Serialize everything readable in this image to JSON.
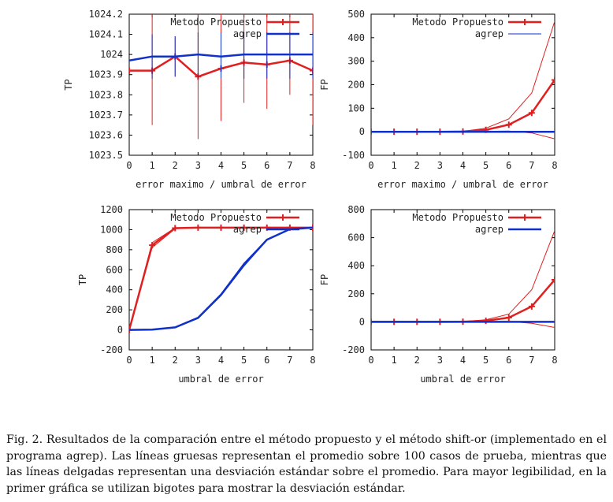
{
  "colors": {
    "propuesto": "#e02020",
    "agrep": "#1030c8",
    "axis": "#000000"
  },
  "chart_data": [
    {
      "id": "tl",
      "type": "line",
      "ylabel": "TP",
      "xlabel": "error maximo / umbral de error",
      "xlim": [
        0,
        8
      ],
      "ylim": [
        1023.5,
        1024.2
      ],
      "xticks": [
        "0",
        "1",
        "2",
        "3",
        "4",
        "5",
        "6",
        "7",
        "8"
      ],
      "yticks": [
        "1023.5",
        "1023.6",
        "1023.7",
        "1023.8",
        "1023.9",
        "1024",
        "1024.1",
        "1024.2"
      ],
      "legend": [
        "Metodo Propuesto",
        "agrep"
      ],
      "series": [
        {
          "name": "Metodo Propuesto",
          "x": [
            0,
            1,
            2,
            3,
            4,
            5,
            6,
            7,
            8
          ],
          "y": [
            1023.92,
            1023.92,
            1023.99,
            1023.89,
            1023.93,
            1023.96,
            1023.95,
            1023.97,
            1023.92
          ],
          "err_lo": [
            null,
            1023.65,
            1023.89,
            1023.58,
            1023.67,
            1023.76,
            1023.73,
            1023.8,
            1023.65
          ],
          "err_hi": [
            null,
            1024.2,
            1024.09,
            1024.2,
            1024.2,
            1024.2,
            1024.2,
            1024.2,
            1024.2
          ]
        },
        {
          "name": "agrep",
          "x": [
            0,
            1,
            2,
            3,
            4,
            5,
            6,
            7,
            8
          ],
          "y": [
            1023.97,
            1023.99,
            1023.99,
            1024.0,
            1023.99,
            1024.0,
            1024.0,
            1024.0,
            1024.0
          ],
          "err_lo": [
            null,
            1023.88,
            1023.89,
            1023.88,
            1023.88,
            1023.88,
            1023.88,
            1023.88,
            1023.88
          ],
          "err_hi": [
            null,
            1024.1,
            1024.09,
            1024.11,
            1024.11,
            1024.11,
            1024.11,
            1024.11,
            1024.11
          ]
        }
      ]
    },
    {
      "id": "tr",
      "type": "line",
      "ylabel": "FP",
      "xlabel": "error maximo / umbral de error",
      "xlim": [
        0,
        8
      ],
      "ylim": [
        -100,
        500
      ],
      "xticks": [
        "0",
        "1",
        "2",
        "3",
        "4",
        "5",
        "6",
        "7",
        "8"
      ],
      "yticks": [
        "-100",
        "0",
        "100",
        "200",
        "300",
        "400",
        "500"
      ],
      "legend": [
        "Metodo Propuesto",
        "agrep"
      ],
      "series": [
        {
          "name": "Metodo Propuesto",
          "x": [
            0,
            1,
            2,
            3,
            4,
            5,
            6,
            7,
            8
          ],
          "y": [
            0,
            0,
            0,
            0,
            1,
            8,
            30,
            80,
            220
          ],
          "upper": [
            0,
            0,
            0,
            0,
            2,
            15,
            55,
            165,
            470
          ],
          "lower": [
            0,
            0,
            0,
            0,
            0,
            2,
            3,
            -5,
            -30
          ]
        },
        {
          "name": "agrep",
          "x": [
            0,
            1,
            2,
            3,
            4,
            5,
            6,
            7,
            8
          ],
          "y": [
            0,
            0,
            0,
            0,
            0,
            0,
            0,
            0,
            0
          ]
        }
      ]
    },
    {
      "id": "bl",
      "type": "line",
      "ylabel": "TP",
      "xlabel": "umbral de error",
      "xlim": [
        0,
        8
      ],
      "ylim": [
        -200,
        1200
      ],
      "xticks": [
        "0",
        "1",
        "2",
        "3",
        "4",
        "5",
        "6",
        "7",
        "8"
      ],
      "yticks": [
        "-200",
        "0",
        "200",
        "400",
        "600",
        "800",
        "1000",
        "1200"
      ],
      "legend": [
        "Metodo Propuesto",
        "agrep"
      ],
      "series": [
        {
          "name": "Metodo Propuesto",
          "x": [
            0,
            1,
            2,
            3,
            4,
            5,
            6,
            7,
            8
          ],
          "y": [
            0,
            845,
            1015,
            1020,
            1020,
            1020,
            1020,
            1020,
            1020
          ],
          "upper": [
            0,
            870,
            1018,
            1021,
            1021,
            1021,
            1021,
            1021,
            1021
          ],
          "lower": [
            0,
            820,
            1010,
            1019,
            1019,
            1019,
            1019,
            1019,
            1019
          ]
        },
        {
          "name": "agrep",
          "x": [
            0,
            1,
            2,
            3,
            4,
            5,
            6,
            7,
            8
          ],
          "y": [
            0,
            2,
            25,
            120,
            350,
            650,
            900,
            1005,
            1020
          ],
          "upper": [
            0,
            3,
            28,
            126,
            360,
            665,
            905,
            1008,
            1021
          ],
          "lower": [
            0,
            1,
            22,
            114,
            340,
            635,
            895,
            1002,
            1019
          ]
        }
      ]
    },
    {
      "id": "br",
      "type": "line",
      "ylabel": "FP",
      "xlabel": "umbral de error",
      "xlim": [
        0,
        8
      ],
      "ylim": [
        -200,
        800
      ],
      "xticks": [
        "0",
        "1",
        "2",
        "3",
        "4",
        "5",
        "6",
        "7",
        "8"
      ],
      "yticks": [
        "-200",
        "0",
        "200",
        "400",
        "600",
        "800"
      ],
      "legend": [
        "Metodo Propuesto",
        "agrep"
      ],
      "series": [
        {
          "name": "Metodo Propuesto",
          "x": [
            0,
            1,
            2,
            3,
            4,
            5,
            6,
            7,
            8
          ],
          "y": [
            0,
            0,
            0,
            0,
            1,
            8,
            30,
            110,
            300
          ],
          "upper": [
            0,
            0,
            0,
            0,
            2,
            15,
            55,
            230,
            650
          ],
          "lower": [
            0,
            0,
            0,
            0,
            0,
            2,
            3,
            -10,
            -40
          ]
        },
        {
          "name": "agrep",
          "x": [
            0,
            1,
            2,
            3,
            4,
            5,
            6,
            7,
            8
          ],
          "y": [
            0,
            0,
            0,
            0,
            0,
            0,
            0,
            0,
            0
          ]
        }
      ]
    }
  ],
  "caption": "Fig. 2. Resultados de la comparación entre el método propuesto y el método shift-or (implementado en el programa agrep). Las líneas gruesas representan el promedio sobre 100 casos de prueba, mientras que las líneas delgadas representan una desviación estándar sobre el promedio. Para mayor legibilidad, en la primer gráfica se utilizan bigotes para mostrar la desviación estándar."
}
